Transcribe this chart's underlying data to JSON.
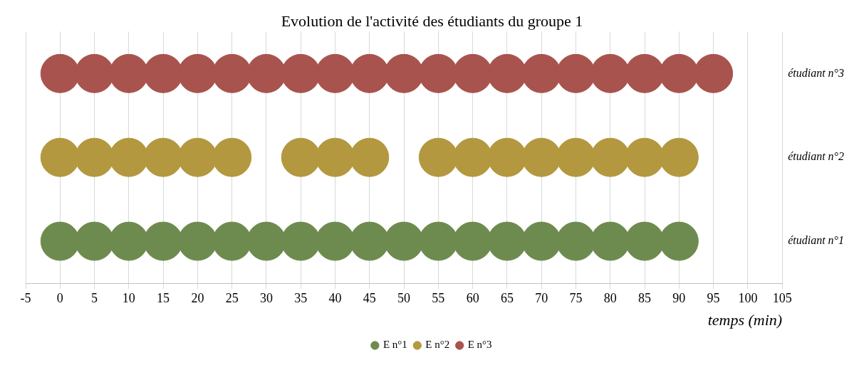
{
  "chart_data": {
    "type": "scatter",
    "title": "Evolution de l'activité des étudiants du groupe 1",
    "xlabel": "temps (min)",
    "xlim": [
      -5,
      105
    ],
    "xticks": [
      -5,
      0,
      5,
      10,
      15,
      20,
      25,
      30,
      35,
      40,
      45,
      50,
      55,
      60,
      65,
      70,
      75,
      80,
      85,
      90,
      95,
      100,
      105
    ],
    "ylim": [
      0.5,
      3.5
    ],
    "yticks": [
      {
        "value": 1,
        "label": "étudiant n°1"
      },
      {
        "value": 2,
        "label": "étudiant n°2"
      },
      {
        "value": 3,
        "label": "étudiant n°3"
      }
    ],
    "grid": "x",
    "legend": "bottom",
    "marker": "circle",
    "series": [
      {
        "name": "E n°1",
        "color": "#6e8b4f",
        "x": [
          0,
          5,
          10,
          15,
          20,
          25,
          30,
          35,
          40,
          45,
          50,
          55,
          60,
          65,
          70,
          75,
          80,
          85,
          90
        ],
        "values": [
          1,
          1,
          1,
          1,
          1,
          1,
          1,
          1,
          1,
          1,
          1,
          1,
          1,
          1,
          1,
          1,
          1,
          1,
          1
        ]
      },
      {
        "name": "E n°2",
        "color": "#b3983f",
        "x": [
          0,
          5,
          10,
          15,
          20,
          25,
          35,
          40,
          45,
          55,
          60,
          65,
          70,
          75,
          80,
          85,
          90
        ],
        "values": [
          2,
          2,
          2,
          2,
          2,
          2,
          2,
          2,
          2,
          2,
          2,
          2,
          2,
          2,
          2,
          2,
          2
        ]
      },
      {
        "name": "E n°3",
        "color": "#a8534d",
        "x": [
          0,
          5,
          10,
          15,
          20,
          25,
          30,
          35,
          40,
          45,
          50,
          55,
          60,
          65,
          70,
          75,
          80,
          85,
          90,
          95
        ],
        "values": [
          3,
          3,
          3,
          3,
          3,
          3,
          3,
          3,
          3,
          3,
          3,
          3,
          3,
          3,
          3,
          3,
          3,
          3,
          3,
          3
        ]
      }
    ]
  }
}
